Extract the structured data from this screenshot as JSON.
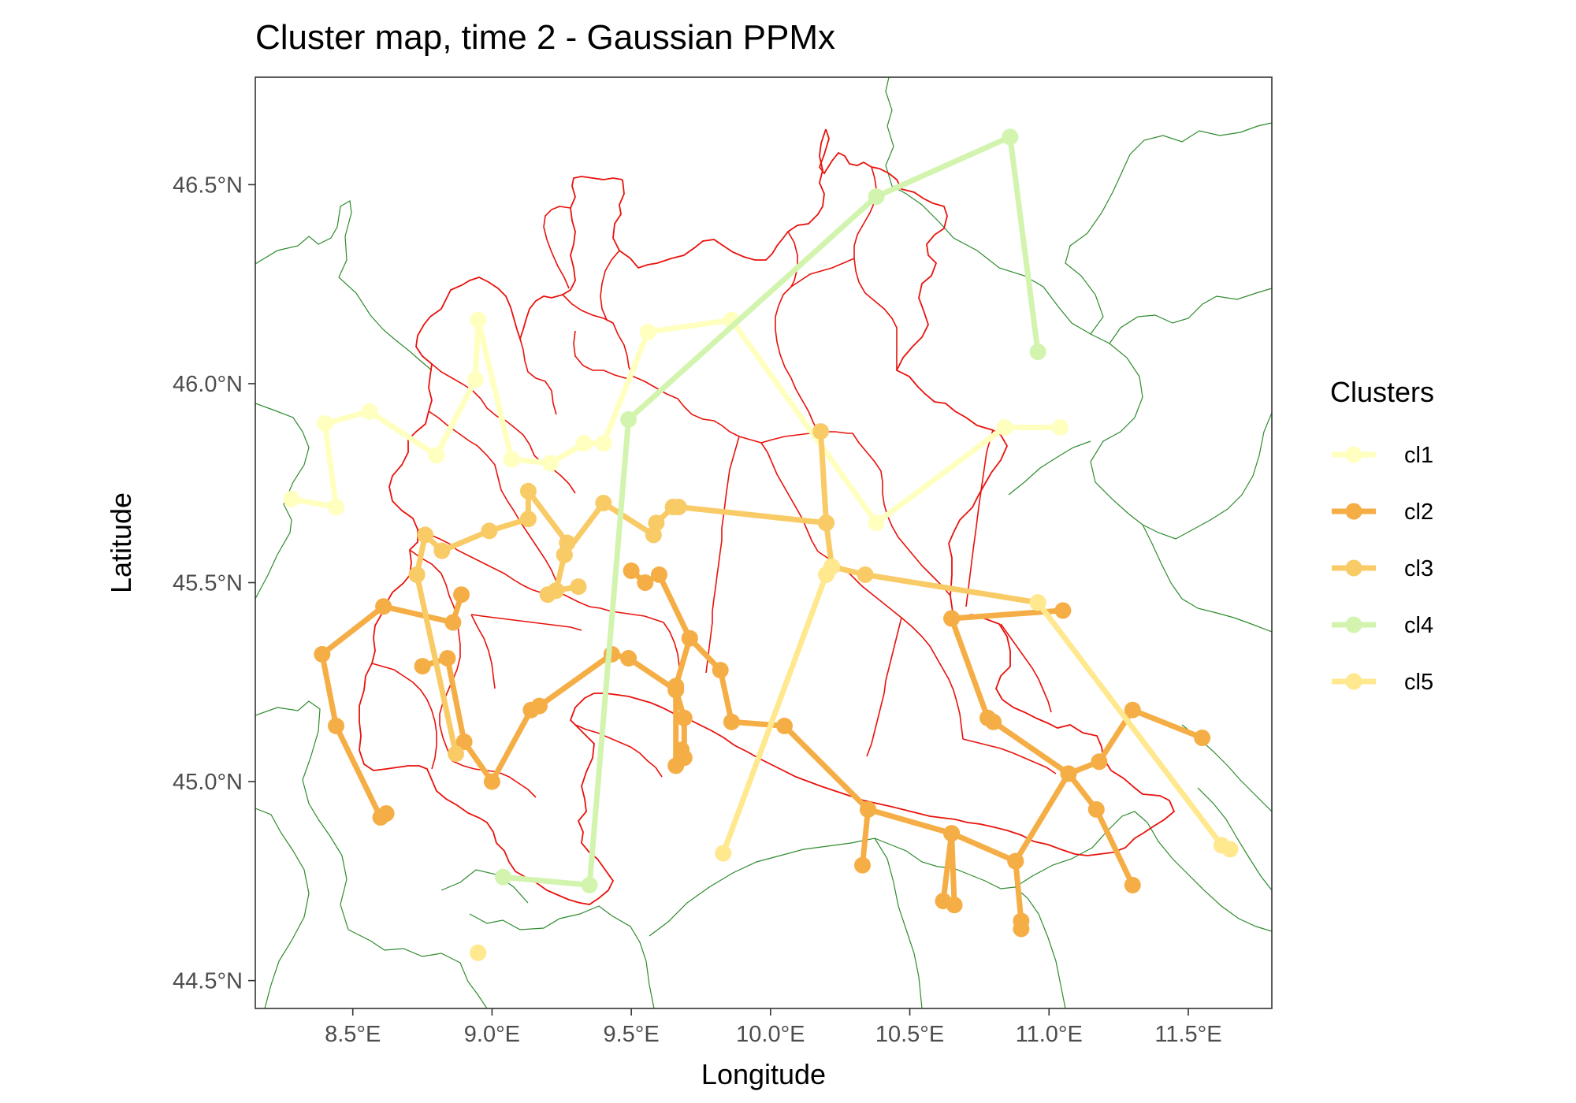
{
  "chart_data": {
    "type": "line",
    "title": "Cluster map, time 2 - Gaussian PPMx",
    "xlabel": "Longitude",
    "ylabel": "Latitude",
    "xlim": [
      8.15,
      11.8
    ],
    "ylim": [
      44.43,
      46.77
    ],
    "x_ticks": [
      8.5,
      9.0,
      9.5,
      10.0,
      10.5,
      11.0,
      11.5
    ],
    "x_tick_labels": [
      "8.5°E",
      "9.0°E",
      "9.5°E",
      "10.0°E",
      "10.5°E",
      "11.0°E",
      "11.5°E"
    ],
    "y_ticks": [
      44.5,
      45.0,
      45.5,
      46.0,
      46.5
    ],
    "y_tick_labels": [
      "44.5°N",
      "45.0°N",
      "45.5°N",
      "46.0°N",
      "46.5°N"
    ],
    "grid": false,
    "legend": {
      "title": "Clusters",
      "position": "right"
    },
    "series": [
      {
        "name": "cl1",
        "color": "#FFFFBF",
        "segments": [
          [
            [
              8.28,
              45.71
            ],
            [
              8.44,
              45.69
            ],
            [
              8.4,
              45.9
            ],
            [
              8.56,
              45.93
            ],
            [
              8.8,
              45.82
            ],
            [
              8.94,
              46.01
            ],
            [
              8.95,
              46.16
            ],
            [
              9.07,
              45.81
            ],
            [
              9.21,
              45.8
            ],
            [
              9.33,
              45.85
            ],
            [
              9.4,
              45.85
            ],
            [
              9.56,
              46.13
            ],
            [
              9.86,
              46.16
            ],
            [
              10.38,
              45.65
            ],
            [
              10.84,
              45.89
            ],
            [
              11.04,
              45.89
            ]
          ]
        ]
      },
      {
        "name": "cl2",
        "color": "#F5AE46",
        "segments": [
          [
            [
              8.62,
              44.92
            ],
            [
              8.6,
              44.91
            ],
            [
              8.44,
              45.14
            ],
            [
              8.39,
              45.32
            ],
            [
              8.61,
              45.44
            ],
            [
              8.86,
              45.4
            ],
            [
              8.89,
              45.47
            ]
          ],
          [
            [
              8.75,
              45.29
            ],
            [
              8.84,
              45.31
            ],
            [
              8.9,
              45.1
            ],
            [
              9.0,
              45.0
            ],
            [
              9.14,
              45.18
            ],
            [
              9.17,
              45.19
            ],
            [
              9.43,
              45.32
            ],
            [
              9.49,
              45.31
            ],
            [
              9.66,
              45.23
            ],
            [
              9.69,
              45.16
            ],
            [
              9.69,
              45.06
            ],
            [
              9.68,
              45.08
            ],
            [
              9.66,
              45.04
            ],
            [
              9.66,
              45.24
            ],
            [
              9.71,
              45.36
            ],
            [
              9.82,
              45.28
            ],
            [
              9.86,
              45.15
            ],
            [
              10.05,
              45.14
            ],
            [
              10.35,
              44.93
            ],
            [
              10.65,
              44.87
            ],
            [
              10.88,
              44.8
            ],
            [
              11.07,
              45.02
            ],
            [
              11.18,
              45.05
            ],
            [
              11.3,
              45.18
            ],
            [
              11.55,
              45.11
            ]
          ],
          [
            [
              9.5,
              45.53
            ],
            [
              9.55,
              45.5
            ],
            [
              9.6,
              45.52
            ],
            [
              9.71,
              45.36
            ]
          ],
          [
            [
              10.33,
              44.79
            ],
            [
              10.35,
              44.93
            ]
          ],
          [
            [
              10.62,
              44.7
            ],
            [
              10.65,
              44.87
            ],
            [
              10.66,
              44.69
            ]
          ],
          [
            [
              10.9,
              44.63
            ],
            [
              10.9,
              44.65
            ],
            [
              10.88,
              44.8
            ]
          ],
          [
            [
              10.65,
              45.41
            ],
            [
              10.78,
              45.16
            ],
            [
              10.8,
              45.15
            ],
            [
              11.07,
              45.02
            ],
            [
              11.17,
              44.93
            ],
            [
              11.3,
              44.74
            ]
          ],
          [
            [
              10.65,
              45.41
            ],
            [
              11.05,
              45.43
            ]
          ]
        ]
      },
      {
        "name": "cl3",
        "color": "#F9CB67",
        "segments": [
          [
            [
              8.73,
              45.52
            ],
            [
              8.76,
              45.62
            ],
            [
              8.82,
              45.58
            ],
            [
              8.99,
              45.63
            ],
            [
              9.13,
              45.66
            ],
            [
              9.13,
              45.73
            ],
            [
              9.27,
              45.6
            ],
            [
              9.26,
              45.57
            ],
            [
              9.4,
              45.7
            ],
            [
              9.58,
              45.62
            ],
            [
              9.59,
              45.65
            ],
            [
              9.65,
              45.69
            ],
            [
              9.67,
              45.69
            ],
            [
              10.2,
              45.65
            ],
            [
              10.22,
              45.54
            ],
            [
              10.34,
              45.52
            ],
            [
              10.96,
              45.45
            ]
          ],
          [
            [
              9.26,
              45.57
            ],
            [
              9.23,
              45.48
            ],
            [
              9.2,
              45.47
            ]
          ],
          [
            [
              9.23,
              45.48
            ],
            [
              9.31,
              45.49
            ]
          ],
          [
            [
              10.18,
              45.88
            ],
            [
              10.2,
              45.65
            ]
          ],
          [
            [
              8.73,
              45.52
            ],
            [
              8.87,
              45.07
            ]
          ]
        ]
      },
      {
        "name": "cl4",
        "color": "#D2F4AE",
        "segments": [
          [
            [
              10.96,
              46.08
            ],
            [
              10.86,
              46.62
            ],
            [
              10.38,
              46.47
            ],
            [
              9.49,
              45.91
            ],
            [
              9.35,
              44.74
            ],
            [
              9.04,
              44.76
            ]
          ]
        ]
      },
      {
        "name": "cl5",
        "color": "#FFE88E",
        "segments": [
          [
            [
              9.83,
              44.82
            ],
            [
              10.2,
              45.52
            ],
            [
              10.22,
              45.54
            ]
          ],
          [
            [
              10.96,
              45.45
            ],
            [
              11.62,
              44.84
            ],
            [
              11.65,
              44.83
            ]
          ],
          [
            [
              8.95,
              44.57
            ]
          ]
        ]
      }
    ]
  }
}
